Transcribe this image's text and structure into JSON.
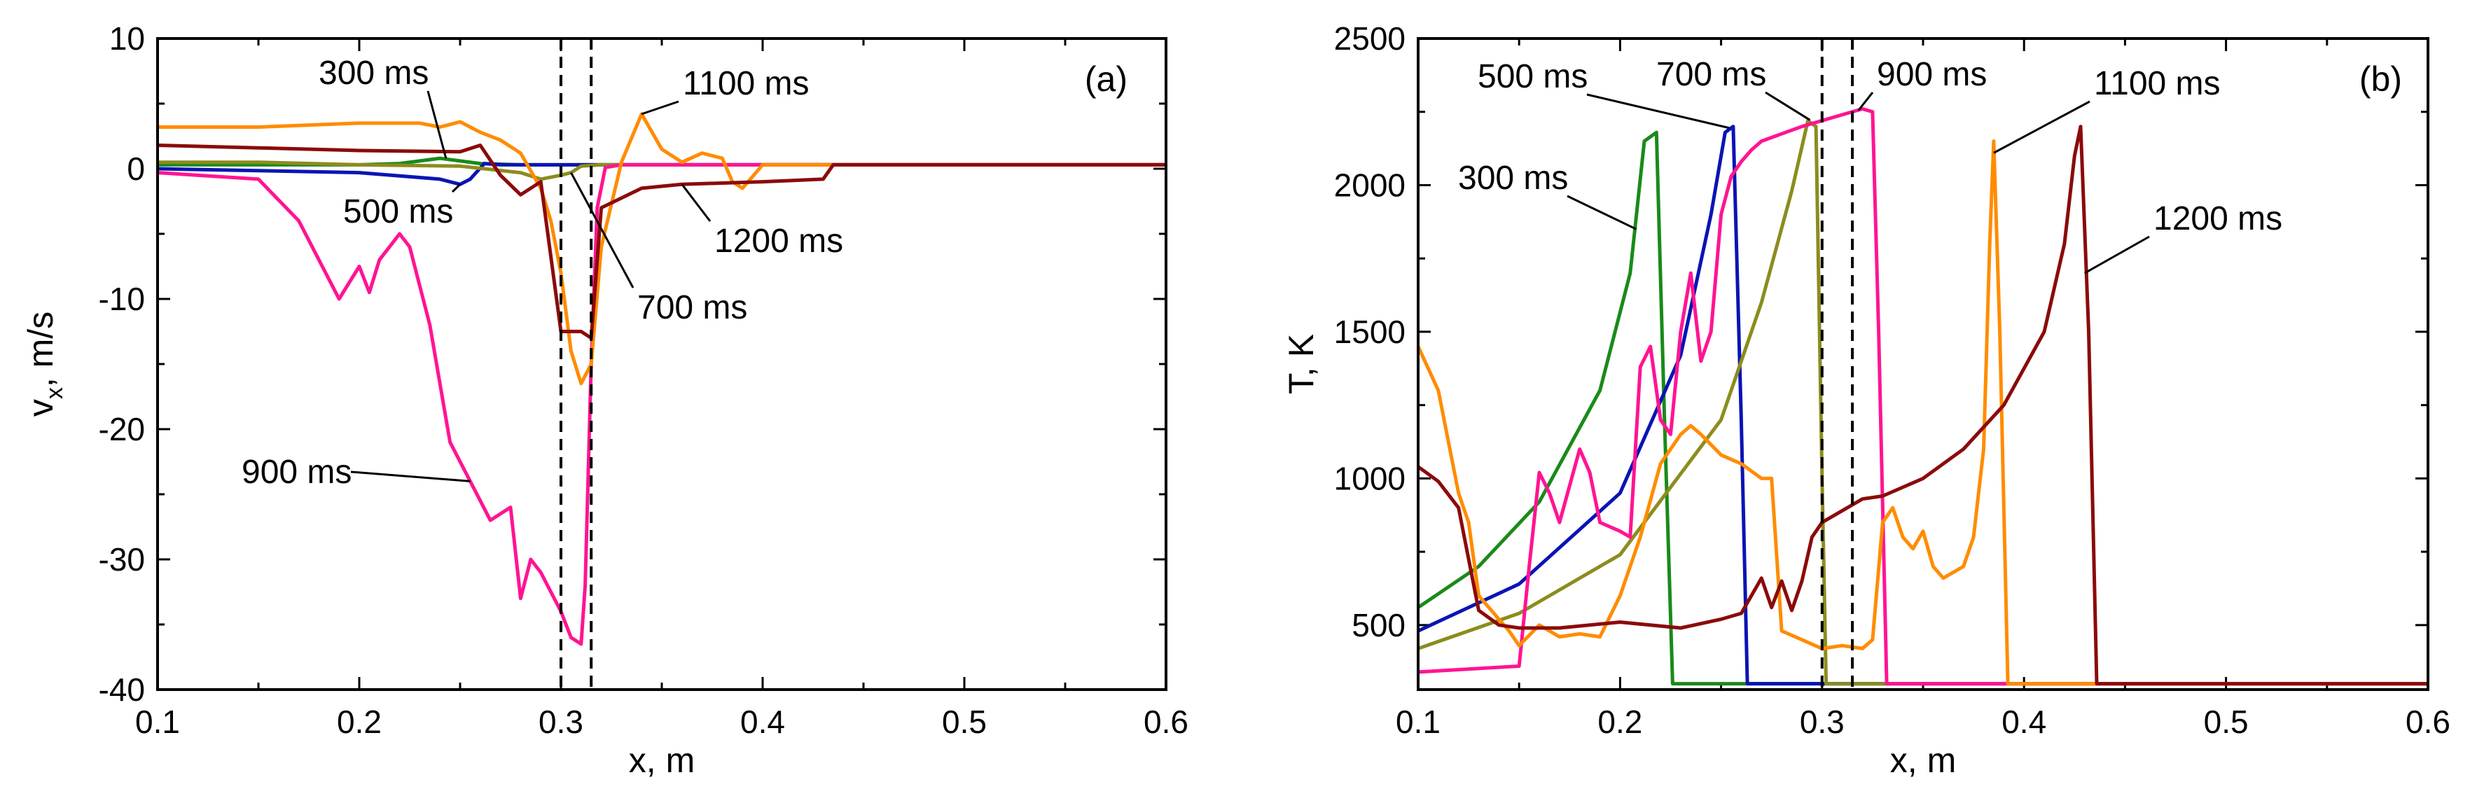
{
  "colors": {
    "300 ms": "#1a8a1a",
    "500 ms": "#0a14b4",
    "700 ms": "#8c8c1e",
    "900 ms": "#ff1493",
    "1100 ms": "#ff8c00",
    "1200 ms": "#8b0a0a"
  },
  "chart_data": [
    {
      "type": "line",
      "panel_label": "(a)",
      "xlabel": "x, m",
      "ylabel_main": "v",
      "ylabel_sub": "x",
      "ylabel_tail": ", m/s",
      "xlim": [
        0.1,
        0.6
      ],
      "ylim": [
        -40,
        10
      ],
      "xticks": [
        0.1,
        0.2,
        0.3,
        0.4,
        0.5,
        0.6
      ],
      "xtick_labels": [
        "0.1",
        "0.2",
        "0.3",
        "0.4",
        "0.5",
        "0.6"
      ],
      "yticks": [
        10,
        0,
        -10,
        -20,
        -30,
        -40
      ],
      "ytick_labels": [
        "10",
        "0",
        "-10",
        "-20",
        "-30",
        "-40"
      ],
      "vlines": [
        0.3,
        0.315
      ],
      "series": [
        {
          "name": "300 ms",
          "x": [
            0.1,
            0.2,
            0.22,
            0.24,
            0.26,
            0.28,
            0.3,
            0.6
          ],
          "y": [
            0.3,
            0.3,
            0.4,
            0.8,
            0.4,
            0.3,
            0.3,
            0.3
          ]
        },
        {
          "name": "500 ms",
          "x": [
            0.1,
            0.2,
            0.24,
            0.25,
            0.255,
            0.262,
            0.27,
            0.6
          ],
          "y": [
            0,
            -0.3,
            -0.8,
            -1.2,
            -0.8,
            0.4,
            0.3,
            0.3
          ]
        },
        {
          "name": "700 ms",
          "x": [
            0.1,
            0.15,
            0.2,
            0.25,
            0.28,
            0.29,
            0.3,
            0.305,
            0.31,
            0.32,
            0.6
          ],
          "y": [
            0.5,
            0.5,
            0.3,
            0.2,
            -0.3,
            -0.8,
            -0.5,
            -0.3,
            0.2,
            0.3,
            0.3
          ]
        },
        {
          "name": "900 ms",
          "x": [
            0.1,
            0.15,
            0.17,
            0.19,
            0.2,
            0.205,
            0.21,
            0.22,
            0.225,
            0.235,
            0.245,
            0.255,
            0.265,
            0.275,
            0.28,
            0.285,
            0.29,
            0.3,
            0.305,
            0.31,
            0.312,
            0.315,
            0.318,
            0.322,
            0.33,
            0.6
          ],
          "y": [
            -0.3,
            -0.8,
            -4,
            -10,
            -7.5,
            -9.5,
            -7,
            -5,
            -6,
            -12,
            -21,
            -24,
            -27,
            -26,
            -33,
            -30,
            -31,
            -34,
            -36,
            -36.5,
            -32,
            -15,
            -3,
            0.1,
            0.3,
            0.3
          ]
        },
        {
          "name": "1100 ms",
          "x": [
            0.1,
            0.15,
            0.2,
            0.23,
            0.24,
            0.25,
            0.26,
            0.27,
            0.28,
            0.29,
            0.295,
            0.3,
            0.305,
            0.31,
            0.315,
            0.32,
            0.33,
            0.34,
            0.35,
            0.36,
            0.37,
            0.38,
            0.385,
            0.39,
            0.4,
            0.6
          ],
          "y": [
            3.2,
            3.2,
            3.5,
            3.5,
            3.2,
            3.6,
            2.8,
            2.2,
            1.2,
            -1.5,
            -4,
            -8,
            -14,
            -16.5,
            -15,
            -6,
            0.5,
            4.2,
            1.5,
            0.5,
            1.2,
            0.8,
            -1,
            -1.5,
            0.3,
            0.3
          ]
        },
        {
          "name": "1200 ms",
          "x": [
            0.1,
            0.15,
            0.2,
            0.25,
            0.26,
            0.27,
            0.28,
            0.29,
            0.3,
            0.31,
            0.315,
            0.32,
            0.34,
            0.36,
            0.4,
            0.43,
            0.435,
            0.6
          ],
          "y": [
            1.8,
            1.6,
            1.4,
            1.3,
            1.8,
            -0.5,
            -2,
            -1,
            -12.5,
            -12.5,
            -13,
            -3,
            -1.5,
            -1.2,
            -1,
            -0.8,
            0.3,
            0.3
          ]
        }
      ],
      "annotations": [
        {
          "text": "300 ms",
          "series": "300 ms",
          "target_x": 0.243,
          "target_y": 0.8
        },
        {
          "text": "500 ms",
          "series": "500 ms",
          "target_x": 0.25,
          "target_y": -1.2
        },
        {
          "text": "700 ms",
          "series": "700 ms",
          "target_x": 0.305,
          "target_y": -0.3
        },
        {
          "text": "900 ms",
          "series": "900 ms",
          "target_x": 0.255,
          "target_y": -24
        },
        {
          "text": "1100 ms",
          "series": "1100 ms",
          "target_x": 0.34,
          "target_y": 4.2
        },
        {
          "text": "1200 ms",
          "series": "1200 ms",
          "target_x": 0.36,
          "target_y": -1.2
        }
      ]
    },
    {
      "type": "line",
      "panel_label": "(b)",
      "xlabel": "x, m",
      "ylabel_main": "T, K",
      "xlim": [
        0.1,
        0.6
      ],
      "ylim": [
        280,
        2500
      ],
      "xticks": [
        0.1,
        0.2,
        0.3,
        0.4,
        0.5,
        0.6
      ],
      "xtick_labels": [
        "0.1",
        "0.2",
        "0.3",
        "0.4",
        "0.5",
        "0.6"
      ],
      "yticks": [
        2500,
        2000,
        1500,
        1000,
        500
      ],
      "ytick_labels": [
        "2500",
        "2000",
        "1500",
        "1000",
        "500"
      ],
      "vlines": [
        0.3,
        0.315
      ],
      "series": [
        {
          "name": "300 ms",
          "x": [
            0.1,
            0.13,
            0.16,
            0.19,
            0.205,
            0.212,
            0.218,
            0.222,
            0.226,
            0.6
          ],
          "y": [
            560,
            700,
            920,
            1300,
            1700,
            2150,
            2180,
            1200,
            300,
            300
          ]
        },
        {
          "name": "500 ms",
          "x": [
            0.1,
            0.15,
            0.2,
            0.23,
            0.245,
            0.252,
            0.256,
            0.26,
            0.263,
            0.6
          ],
          "y": [
            480,
            640,
            950,
            1420,
            1900,
            2180,
            2200,
            1200,
            300,
            300
          ]
        },
        {
          "name": "700 ms",
          "x": [
            0.1,
            0.15,
            0.2,
            0.25,
            0.27,
            0.285,
            0.293,
            0.297,
            0.3,
            0.302,
            0.6
          ],
          "y": [
            420,
            540,
            740,
            1200,
            1600,
            1980,
            2220,
            2200,
            1000,
            300,
            300
          ]
        },
        {
          "name": "900 ms",
          "x": [
            0.1,
            0.15,
            0.155,
            0.16,
            0.165,
            0.17,
            0.18,
            0.185,
            0.19,
            0.2,
            0.205,
            0.21,
            0.215,
            0.22,
            0.225,
            0.23,
            0.235,
            0.24,
            0.245,
            0.25,
            0.255,
            0.26,
            0.265,
            0.27,
            0.29,
            0.31,
            0.32,
            0.325,
            0.328,
            0.332,
            0.6
          ],
          "y": [
            340,
            360,
            700,
            1020,
            950,
            850,
            1100,
            1020,
            850,
            820,
            800,
            1380,
            1450,
            1200,
            1150,
            1500,
            1700,
            1400,
            1500,
            1900,
            2030,
            2080,
            2120,
            2150,
            2200,
            2240,
            2260,
            2250,
            1500,
            300,
            300
          ]
        },
        {
          "name": "1100 ms",
          "x": [
            0.1,
            0.11,
            0.12,
            0.125,
            0.13,
            0.14,
            0.145,
            0.15,
            0.16,
            0.17,
            0.18,
            0.19,
            0.2,
            0.21,
            0.22,
            0.23,
            0.235,
            0.24,
            0.25,
            0.26,
            0.27,
            0.275,
            0.28,
            0.29,
            0.3,
            0.31,
            0.32,
            0.325,
            0.33,
            0.335,
            0.34,
            0.345,
            0.35,
            0.355,
            0.36,
            0.37,
            0.375,
            0.38,
            0.383,
            0.385,
            0.388,
            0.392,
            0.6
          ],
          "y": [
            1450,
            1300,
            950,
            850,
            600,
            520,
            480,
            430,
            500,
            460,
            470,
            460,
            600,
            800,
            1050,
            1150,
            1180,
            1150,
            1080,
            1050,
            1000,
            1000,
            480,
            450,
            420,
            430,
            420,
            450,
            850,
            900,
            800,
            760,
            820,
            700,
            660,
            700,
            800,
            1100,
            1800,
            2150,
            1500,
            300,
            300
          ]
        },
        {
          "name": "1200 ms",
          "x": [
            0.1,
            0.11,
            0.12,
            0.13,
            0.14,
            0.15,
            0.17,
            0.2,
            0.23,
            0.25,
            0.26,
            0.27,
            0.275,
            0.28,
            0.285,
            0.29,
            0.295,
            0.3,
            0.32,
            0.33,
            0.35,
            0.37,
            0.39,
            0.41,
            0.42,
            0.425,
            0.428,
            0.432,
            0.436,
            0.6
          ],
          "y": [
            1040,
            990,
            900,
            550,
            500,
            490,
            490,
            510,
            490,
            520,
            540,
            660,
            560,
            650,
            550,
            650,
            800,
            850,
            930,
            940,
            1000,
            1100,
            1250,
            1500,
            1800,
            2100,
            2200,
            1500,
            300,
            300
          ]
        }
      ],
      "annotations": [
        {
          "text": "300 ms",
          "series": "300 ms",
          "target_x": 0.208,
          "target_y": 1850
        },
        {
          "text": "500 ms",
          "series": "500 ms",
          "target_x": 0.254,
          "target_y": 2195
        },
        {
          "text": "700 ms",
          "series": "700 ms",
          "target_x": 0.294,
          "target_y": 2222
        },
        {
          "text": "900 ms",
          "series": "900 ms",
          "target_x": 0.318,
          "target_y": 2255
        },
        {
          "text": "1100 ms",
          "series": "1100 ms",
          "target_x": 0.385,
          "target_y": 2110
        },
        {
          "text": "1200 ms",
          "series": "1200 ms",
          "target_x": 0.43,
          "target_y": 1700
        }
      ]
    }
  ]
}
